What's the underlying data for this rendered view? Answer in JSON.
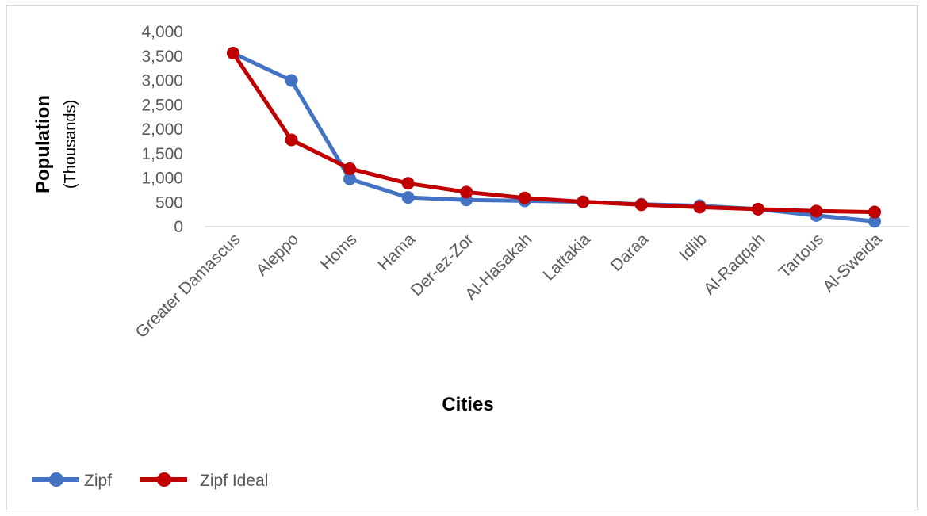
{
  "chart_data": {
    "type": "line",
    "xlabel": "Cities",
    "ylabel": "Population",
    "ylabel_unit": "(Thousands)",
    "ylim": [
      0,
      4000
    ],
    "yticks": [
      0,
      500,
      1000,
      1500,
      2000,
      2500,
      3000,
      3500,
      4000
    ],
    "ytick_labels": [
      "0",
      "500",
      "1,000",
      "1,500",
      "2,000",
      "2,500",
      "3,000",
      "3,500",
      "4,000"
    ],
    "categories": [
      "Greater Damascus",
      "Aleppo",
      "Homs",
      "Hama",
      "Der-ez-Zor",
      "Al-Hasakah",
      "Lattakia",
      "Daraa",
      "Idlib",
      "Al-Raqqah",
      "Tartous",
      "Al-Sweida"
    ],
    "series": [
      {
        "name": "Zipf",
        "color": "#4472c4",
        "values": [
          3560,
          3000,
          980,
          600,
          550,
          530,
          510,
          460,
          430,
          360,
          230,
          110
        ]
      },
      {
        "name": "Zipf Ideal",
        "color": "#c00000",
        "values": [
          3560,
          1780,
          1190,
          890,
          710,
          590,
          510,
          450,
          400,
          360,
          320,
          300
        ]
      }
    ],
    "grid": false,
    "legend_position": "bottom-left"
  }
}
